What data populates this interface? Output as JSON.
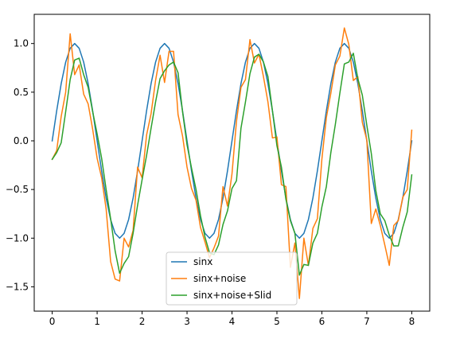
{
  "chart_data": {
    "type": "line",
    "title": "",
    "xlabel": "",
    "ylabel": "",
    "xlim": [
      -0.4,
      8.4
    ],
    "ylim": [
      -1.75,
      1.3
    ],
    "grid": false,
    "legend_position": "lower-center",
    "x_ticks": [
      0,
      1,
      2,
      3,
      4,
      5,
      6,
      7,
      8
    ],
    "x_tick_labels": [
      "0",
      "1",
      "2",
      "3",
      "4",
      "5",
      "6",
      "7",
      "8"
    ],
    "y_ticks": [
      1.0,
      0.5,
      0.0,
      -0.5,
      -1.0,
      -1.5
    ],
    "y_tick_labels": [
      "1.0",
      "0.5",
      "0.0",
      "−0.5",
      "−1.0",
      "−1.5"
    ],
    "x": [
      0,
      0.1,
      0.2,
      0.3,
      0.4,
      0.5,
      0.6,
      0.7,
      0.8,
      0.9,
      1.0,
      1.1,
      1.2,
      1.3,
      1.4,
      1.5,
      1.6,
      1.7,
      1.8,
      1.9,
      2.0,
      2.1,
      2.2,
      2.3,
      2.4,
      2.5,
      2.6,
      2.7,
      2.8,
      2.9,
      3.0,
      3.1,
      3.2,
      3.3,
      3.4,
      3.5,
      3.6,
      3.7,
      3.8,
      3.9,
      4.0,
      4.1,
      4.2,
      4.3,
      4.4,
      4.5,
      4.6,
      4.7,
      4.8,
      4.9,
      5.0,
      5.1,
      5.2,
      5.3,
      5.4,
      5.5,
      5.6,
      5.7,
      5.8,
      5.9,
      6.0,
      6.1,
      6.2,
      6.3,
      6.4,
      6.5,
      6.6,
      6.7,
      6.8,
      6.9,
      7.0,
      7.1,
      7.2,
      7.3,
      7.4,
      7.5,
      7.6,
      7.7,
      7.8,
      7.9,
      8.0
    ],
    "series": [
      {
        "name": "sinx",
        "color": "#1f77b4",
        "values": [
          0.0,
          0.309,
          0.588,
          0.809,
          0.951,
          1.0,
          0.951,
          0.809,
          0.588,
          0.309,
          0.0,
          -0.309,
          -0.588,
          -0.809,
          -0.951,
          -1.0,
          -0.951,
          -0.809,
          -0.588,
          -0.309,
          0.0,
          0.309,
          0.588,
          0.809,
          0.951,
          1.0,
          0.951,
          0.809,
          0.588,
          0.309,
          0.0,
          -0.309,
          -0.588,
          -0.809,
          -0.951,
          -1.0,
          -0.951,
          -0.809,
          -0.588,
          -0.309,
          0.0,
          0.309,
          0.588,
          0.809,
          0.951,
          1.0,
          0.951,
          0.809,
          0.588,
          0.309,
          0.0,
          -0.309,
          -0.588,
          -0.809,
          -0.951,
          -1.0,
          -0.951,
          -0.809,
          -0.588,
          -0.309,
          0.0,
          0.309,
          0.588,
          0.809,
          0.951,
          1.0,
          0.951,
          0.809,
          0.588,
          0.309,
          0.0,
          -0.309,
          -0.588,
          -0.809,
          -0.951,
          -1.0,
          -0.951,
          -0.809,
          -0.588,
          -0.309,
          0.0
        ]
      },
      {
        "name": "sinx+noise",
        "color": "#ff7f0e",
        "values": [
          -0.19,
          -0.1,
          0.25,
          0.5,
          1.1,
          0.68,
          0.78,
          0.48,
          0.38,
          0.12,
          -0.18,
          -0.38,
          -0.7,
          -1.24,
          -1.42,
          -1.44,
          -1.0,
          -1.09,
          -0.92,
          -0.27,
          -0.38,
          0.06,
          0.28,
          0.62,
          0.88,
          0.6,
          0.92,
          0.92,
          0.27,
          0.05,
          -0.27,
          -0.49,
          -0.61,
          -0.89,
          -1.04,
          -1.2,
          -1.1,
          -0.98,
          -0.47,
          -0.67,
          -0.34,
          0.2,
          0.55,
          0.63,
          1.04,
          0.8,
          0.89,
          0.66,
          0.4,
          0.03,
          0.04,
          -0.45,
          -0.47,
          -1.3,
          -1.05,
          -1.62,
          -1.0,
          -1.28,
          -0.9,
          -0.8,
          -0.19,
          0.24,
          0.49,
          0.78,
          0.87,
          1.16,
          0.99,
          0.62,
          0.66,
          0.19,
          0.01,
          -0.85,
          -0.7,
          -0.87,
          -1.07,
          -1.28,
          -0.87,
          -0.82,
          -0.58,
          -0.5,
          0.11
        ]
      },
      {
        "name": "sinx+noise+Slid",
        "color": "#2ca02c",
        "values": [
          -0.19,
          -0.12,
          -0.02,
          0.3,
          0.63,
          0.83,
          0.85,
          0.68,
          0.55,
          0.3,
          0.07,
          -0.18,
          -0.5,
          -0.8,
          -1.13,
          -1.36,
          -1.26,
          -1.19,
          -0.95,
          -0.66,
          -0.4,
          -0.15,
          0.13,
          0.4,
          0.64,
          0.72,
          0.78,
          0.81,
          0.7,
          0.3,
          -0.04,
          -0.28,
          -0.5,
          -0.77,
          -0.99,
          -1.15,
          -1.17,
          -1.07,
          -0.86,
          -0.72,
          -0.49,
          -0.41,
          0.13,
          0.4,
          0.69,
          0.86,
          0.89,
          0.81,
          0.66,
          0.31,
          -0.05,
          -0.27,
          -0.6,
          -0.82,
          -0.95,
          -1.38,
          -1.27,
          -1.28,
          -1.05,
          -0.95,
          -0.68,
          -0.47,
          -0.12,
          0.17,
          0.49,
          0.79,
          0.81,
          0.9,
          0.64,
          0.47,
          0.16,
          -0.13,
          -0.51,
          -0.75,
          -0.82,
          -0.97,
          -1.08,
          -1.08,
          -0.89,
          -0.73,
          -0.35
        ]
      }
    ]
  }
}
